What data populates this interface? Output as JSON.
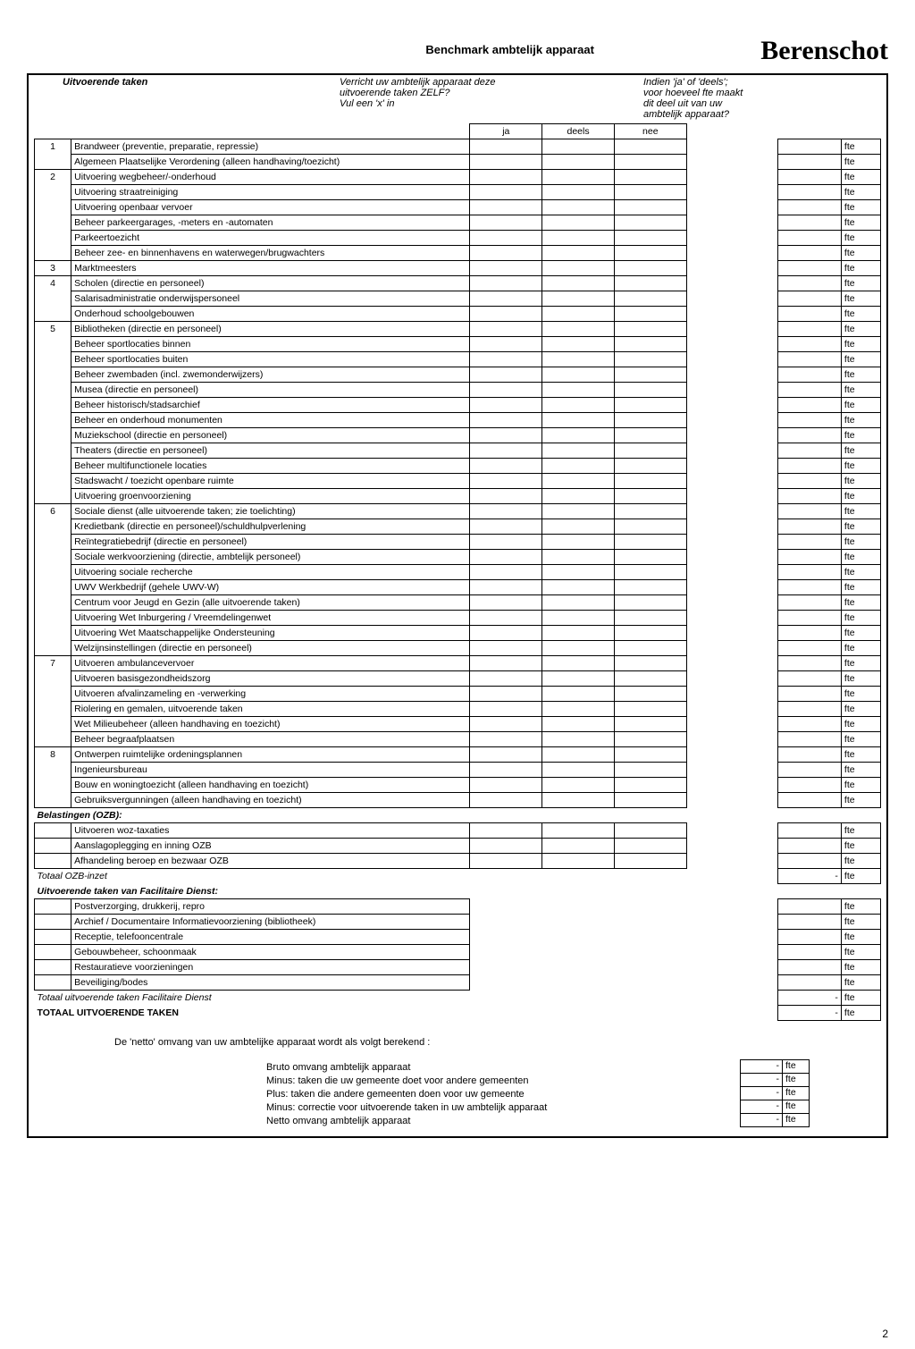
{
  "header": {
    "title": "Benchmark ambtelijk apparaat",
    "brand": "Berenschot"
  },
  "instructions": {
    "left": "Uitvoerende taken",
    "mid_l1": "Verricht uw ambtelijk apparaat deze",
    "mid_l2": "uitvoerende taken ZELF?",
    "mid_l3": "Vul een 'x' in",
    "right_l1": "Indien 'ja' of 'deels';",
    "right_l2": "voor hoeveel fte maakt",
    "right_l3": "dit deel uit van uw",
    "right_l4": "ambtelijk apparaat?"
  },
  "colheads": {
    "ja": "ja",
    "deels": "deels",
    "nee": "nee"
  },
  "unit": "fte",
  "groups": [
    {
      "num": "1",
      "rows": [
        "Brandweer (preventie, preparatie, repressie)",
        "Algemeen Plaatselijke Verordening (alleen handhaving/toezicht)"
      ]
    },
    {
      "num": "2",
      "rows": [
        "Uitvoering wegbeheer/-onderhoud",
        "Uitvoering straatreiniging",
        "Uitvoering openbaar vervoer",
        "Beheer parkeergarages, -meters en -automaten",
        "Parkeertoezicht",
        "Beheer zee- en binnenhavens en waterwegen/brugwachters"
      ]
    },
    {
      "num": "3",
      "rows": [
        "Marktmeesters"
      ]
    },
    {
      "num": "4",
      "rows": [
        "Scholen (directie en personeel)",
        "Salarisadministratie onderwijspersoneel",
        "Onderhoud schoolgebouwen"
      ]
    },
    {
      "num": "5",
      "rows": [
        "Bibliotheken (directie en personeel)",
        "Beheer sportlocaties binnen",
        "Beheer sportlocaties buiten",
        "Beheer zwembaden (incl. zwemonderwijzers)",
        "Musea (directie en personeel)",
        "Beheer historisch/stadsarchief",
        "Beheer en onderhoud monumenten",
        "Muziekschool (directie en personeel)",
        "Theaters (directie en personeel)",
        "Beheer multifunctionele locaties",
        "Stadswacht / toezicht openbare ruimte",
        "Uitvoering groenvoorziening"
      ]
    },
    {
      "num": "6",
      "rows": [
        "Sociale dienst (alle uitvoerende taken; zie toelichting)",
        "Kredietbank (directie en personeel)/schuldhulpverlening",
        "Reïntegratiebedrijf (directie en personeel)",
        "Sociale werkvoorziening (directie, ambtelijk personeel)",
        "Uitvoering sociale recherche",
        "UWV Werkbedrijf (gehele UWV-W)",
        "Centrum voor Jeugd en Gezin (alle uitvoerende taken)",
        "Uitvoering Wet Inburgering / Vreemdelingenwet",
        "Uitvoering Wet Maatschappelijke Ondersteuning",
        "Welzijnsinstellingen (directie en personeel)"
      ]
    },
    {
      "num": "7",
      "rows": [
        "Uitvoeren ambulancevervoer",
        "Uitvoeren basisgezondheidszorg",
        "Uitvoeren afvalinzameling en -verwerking",
        "Riolering en gemalen, uitvoerende taken",
        "Wet Milieubeheer (alleen handhaving en toezicht)",
        "Beheer begraafplaatsen"
      ]
    },
    {
      "num": "8",
      "rows": [
        "Ontwerpen ruimtelijke ordeningsplannen",
        "Ingenieursbureau",
        "Bouw en woningtoezicht (alleen handhaving en toezicht)",
        "Gebruiksvergunningen (alleen handhaving en toezicht)"
      ]
    }
  ],
  "sectionA": {
    "label": "Belastingen (OZB):",
    "rows": [
      "Uitvoeren woz-taxaties",
      "Aanslagoplegging en inning OZB",
      "Afhandeling beroep en bezwaar OZB"
    ],
    "total": "Totaal OZB-inzet",
    "total_val": "-"
  },
  "sectionB": {
    "label": "Uitvoerende taken van Facilitaire Dienst:",
    "rows": [
      "Postverzorging, drukkerij, repro",
      "Archief / Documentaire Informatievoorziening (bibliotheek)",
      "Receptie, telefooncentrale",
      "Gebouwbeheer, schoonmaak",
      "Restauratieve voorzieningen",
      "Beveiliging/bodes"
    ],
    "total": "Totaal uitvoerende taken Facilitaire Dienst",
    "total_val": "-"
  },
  "grandtotal": {
    "label": "TOTAAL UITVOERENDE TAKEN",
    "val": "-"
  },
  "footer_para": "De 'netto' omvang van uw ambtelijke apparaat wordt als volgt berekend :",
  "calc": [
    {
      "label": "Bruto omvang ambtelijk apparaat",
      "val": "-"
    },
    {
      "label": "Minus: taken die uw gemeente doet voor andere gemeenten",
      "val": "-"
    },
    {
      "label": "Plus: taken die andere gemeenten doen voor uw gemeente",
      "val": "-"
    },
    {
      "label": "Minus: correctie voor uitvoerende taken in uw ambtelijk apparaat",
      "val": "-"
    },
    {
      "label": "Netto omvang ambtelijk apparaat",
      "val": "-"
    }
  ],
  "page_number": "2"
}
